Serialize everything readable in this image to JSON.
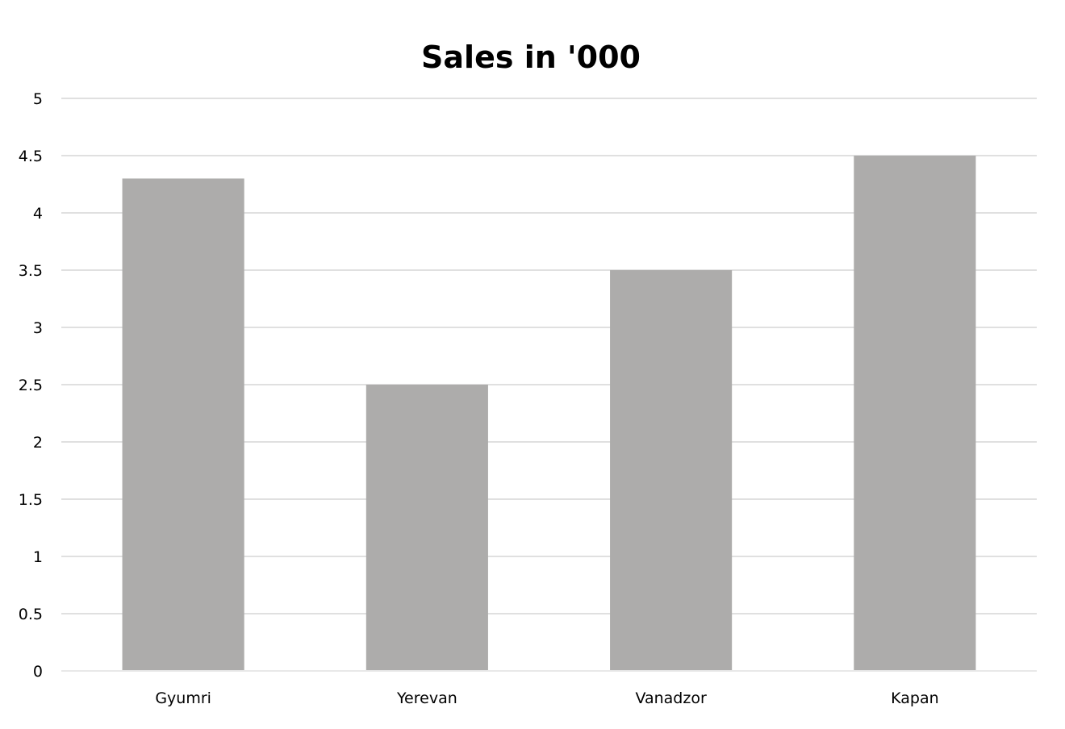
{
  "chart_data": {
    "type": "bar",
    "title": "Sales in '000",
    "xlabel": "",
    "ylabel": "",
    "categories": [
      "Gyumri",
      "Yerevan",
      "Vanadzor",
      "Kapan"
    ],
    "values": [
      4.3,
      2.5,
      3.5,
      4.5
    ],
    "ylim": [
      0,
      5
    ],
    "yticks": [
      "0",
      "0.5",
      "1",
      "1.5",
      "2",
      "2.5",
      "3",
      "3.5",
      "4",
      "4.5",
      "5"
    ],
    "grid": true,
    "legend": "none"
  },
  "colors": {
    "bar": "#adacab",
    "grid": "#e0e0e0",
    "axis": "#e8e8e8",
    "text": "#000000",
    "background": "#ffffff"
  }
}
